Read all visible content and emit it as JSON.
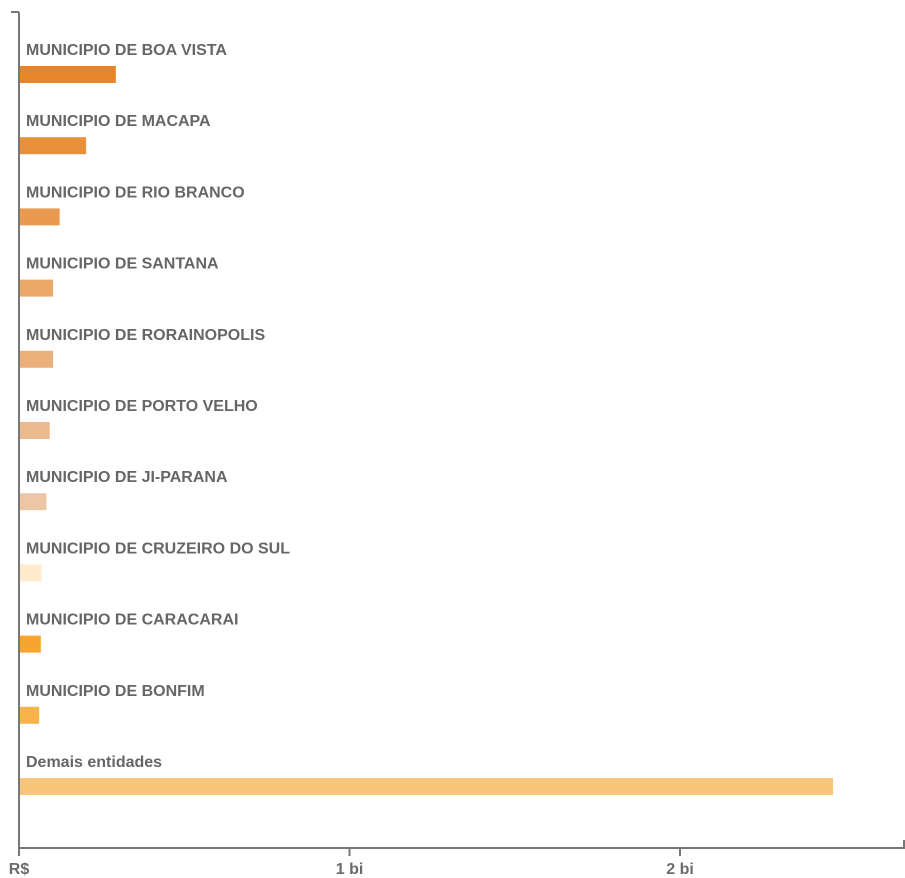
{
  "chart_data": {
    "type": "bar",
    "orientation": "horizontal",
    "categories": [
      "MUNICIPIO DE BOA VISTA",
      "MUNICIPIO DE MACAPA",
      "MUNICIPIO DE RIO BRANCO",
      "MUNICIPIO DE SANTANA",
      "MUNICIPIO DE RORAINOPOLIS",
      "MUNICIPIO DE PORTO VELHO",
      "MUNICIPIO DE JI-PARANA",
      "MUNICIPIO DE CRUZEIRO DO SUL",
      "MUNICIPIO DE CARACARAI",
      "MUNICIPIO DE BONFIM",
      "Demais entidades"
    ],
    "values": [
      0.29,
      0.2,
      0.12,
      0.1,
      0.1,
      0.09,
      0.08,
      0.065,
      0.063,
      0.058,
      2.46
    ],
    "colors": [
      "#E8852A",
      "#E8913A",
      "#E99A4E",
      "#EBA866",
      "#EBB07A",
      "#EBBA8E",
      "#EDC7A5",
      "#FFEBCB",
      "#F8A431",
      "#F8B24A",
      "#F8C67A"
    ],
    "x_tick_labels": [
      "R$",
      "1 bi",
      "2 bi"
    ],
    "x_ticks": [
      0,
      1,
      2
    ],
    "xlim": [
      0,
      2.7
    ],
    "unit": "bi",
    "grid": false,
    "legend": "none",
    "axis_color": "#777777"
  }
}
